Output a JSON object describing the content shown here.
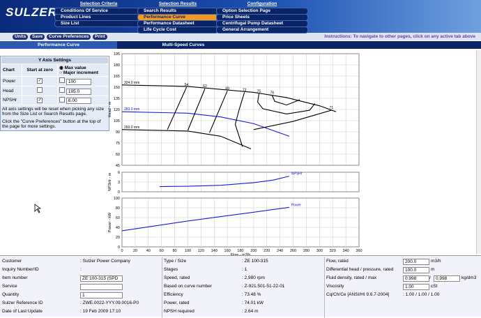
{
  "header": {
    "logo": "SULZER",
    "nav": [
      {
        "title": "Selection Criteria",
        "items": [
          "Conditions Of Service",
          "Product Lines",
          "Size List"
        ]
      },
      {
        "title": "Selection Results",
        "items": [
          "Search Results",
          "Performance Curve",
          "Performance Datasheet",
          "Life Cycle Cost"
        ],
        "active": 1
      },
      {
        "title": "Configuration",
        "items": [
          "Option Selection Page",
          "Price Sheets",
          "Centrifugal Pump Datasheet",
          "General Arrangement"
        ]
      }
    ]
  },
  "toolbar": {
    "buttons": [
      "Units",
      "Save",
      "Curve Preferences",
      "Print"
    ],
    "instructions": "Instructions: To navigate to other pages, click on any active tab above"
  },
  "tabs": [
    "Performance Curve",
    "Multi-Speed Curves"
  ],
  "axis_settings": {
    "title": "Y Axis Settings",
    "headers": [
      "Chart",
      "Start at zero",
      "Max value",
      "Major increment"
    ],
    "rows": [
      {
        "chart": "Power",
        "start_at_zero": true,
        "value": "100"
      },
      {
        "chart": "Head",
        "start_at_zero": false,
        "value": "195.0"
      },
      {
        "chart": "NPSHr",
        "start_at_zero": true,
        "value": "6.00"
      }
    ],
    "note1": "All axis settings will be reset when picking any size from the Size List or Search Results page.",
    "note2": "Click the \"Curve Preferences\" button at the top of the page for more settings."
  },
  "chart_data": [
    {
      "type": "line",
      "ylabel": "Head - m",
      "xlim": [
        0,
        360
      ],
      "xticks": [
        0,
        20,
        40,
        60,
        80,
        100,
        120,
        140,
        160,
        180,
        200,
        220,
        240,
        260,
        280,
        300,
        320,
        340,
        360
      ],
      "ylim": [
        45,
        195
      ],
      "yticks": [
        45,
        60,
        75,
        90,
        105,
        120,
        135,
        150,
        165,
        180,
        195
      ],
      "grid": true,
      "series": [
        {
          "name": "324.0 mm",
          "color": "#000000",
          "x": [
            0,
            100,
            200,
            250,
            300,
            325
          ],
          "values": [
            153,
            151,
            143,
            136,
            125,
            117
          ]
        },
        {
          "name": "283.0 mm",
          "color": "#1a1adc",
          "x": [
            0,
            100,
            150,
            200,
            254
          ],
          "values": [
            117,
            115,
            110,
            101,
            84
          ]
        },
        {
          "name": "260.0 mm",
          "color": "#000000",
          "x": [
            0,
            100,
            150,
            196
          ],
          "values": [
            93,
            91,
            84,
            67
          ]
        }
      ],
      "efficiency_lines": [
        {
          "name": "54",
          "x": [
            98,
            69
          ],
          "values": [
            150,
            93
          ]
        },
        {
          "name": "62",
          "x": [
            126,
            100
          ],
          "values": [
            148,
            92
          ]
        },
        {
          "name": "69",
          "x": [
            160,
            133
          ],
          "values": [
            145,
            89
          ]
        },
        {
          "name": "73",
          "x": [
            186,
            178,
            172,
            183
          ],
          "values": [
            143,
            120,
            100,
            70
          ]
        },
        {
          "name": "75",
          "x": [
            208,
            206,
            214,
            250,
            285,
            293
          ],
          "values": [
            141,
            130,
            121,
            114,
            119,
            128
          ]
        },
        {
          "name": "76",
          "x": [
            228,
            232,
            250,
            270
          ],
          "values": [
            139,
            131,
            126,
            133
          ]
        },
        {
          "name": "71",
          "x": [
            318,
            260,
            200
          ],
          "values": [
            119,
            104,
            93
          ]
        }
      ]
    },
    {
      "type": "line",
      "ylabel": "NPSHr - m",
      "xlim": [
        0,
        360
      ],
      "xticks": [
        0,
        20,
        40,
        60,
        80,
        100,
        120,
        140,
        160,
        180,
        200,
        220,
        240,
        260,
        280,
        300,
        320,
        340,
        360
      ],
      "ylim": [
        0,
        6
      ],
      "yticks": [
        0,
        3,
        6
      ],
      "grid": true,
      "series": [
        {
          "name": "NPSHr",
          "color": "#1a1adc",
          "x": [
            57,
            100,
            150,
            200,
            230,
            254
          ],
          "values": [
            1.6,
            1.7,
            2.0,
            2.8,
            3.6,
            4.8
          ]
        }
      ]
    },
    {
      "type": "line",
      "ylabel": "Power - kW",
      "xlabel": "Flow - m3/h",
      "xlim": [
        0,
        360
      ],
      "xticks": [
        0,
        20,
        40,
        60,
        80,
        100,
        120,
        140,
        160,
        180,
        200,
        220,
        240,
        260,
        280,
        300,
        320,
        340,
        360
      ],
      "ylim": [
        0,
        100
      ],
      "yticks": [
        0,
        20,
        40,
        60,
        80,
        100
      ],
      "grid": true,
      "series": [
        {
          "name": "Power",
          "color": "#1a1adc",
          "x": [
            0,
            50,
            100,
            150,
            200,
            254
          ],
          "values": [
            33,
            43,
            53,
            62,
            71,
            81
          ]
        }
      ]
    }
  ],
  "info": {
    "columns": [
      [
        {
          "label": "Customer",
          "value": ": Sulzer Power Company"
        },
        {
          "label": "Inquiry Number/ID",
          "value": ":"
        },
        {
          "label": "Item number",
          "input": "ZE 100-315 (SPD"
        },
        {
          "label": "Service",
          "input": null
        },
        {
          "label": "Quantity",
          "input": "1"
        },
        {
          "label": "Sulzer Reference ID",
          "value": ": ZWE.0022-YYY.09.0016-P0"
        },
        {
          "label": "Date of Last Update",
          "value": ": 19 Feb 2009 17:10"
        }
      ],
      [
        {
          "label": "Type / Size",
          "value": ": ZE 100-315"
        },
        {
          "label": "Stages",
          "value": ": 1"
        },
        {
          "label": "Speed, rated",
          "value": ": 2,980 rpm"
        },
        {
          "label": "Based on curve number",
          "value": ": Z-921.501-51-22-01"
        },
        {
          "label": "Efficiency",
          "value": ": 73.48 %"
        },
        {
          "label": "Power, rated",
          "value": ": 74.01 kW"
        },
        {
          "label": "NPSH required",
          "value": ": 2.64 m"
        }
      ],
      [
        {
          "label": "Flow, rated",
          "input": "200.0",
          "unit": "m3/h"
        },
        {
          "label": "Differential head / pressure, rated",
          "input": "100.0",
          "unit": "m"
        },
        {
          "label": "Fluid density, rated / max",
          "input": "0.998",
          "sep": "/",
          "input2": "0.998",
          "unit": "kg/dm3"
        },
        {
          "label": "Viscosity",
          "input": "1.00",
          "unit": "cSt"
        },
        {
          "label": "Cq/Ch/Ce [ANSI/HI 9.6.7-2004]",
          "value": ": 1.00 / 1.00 / 1.00"
        }
      ]
    ]
  }
}
